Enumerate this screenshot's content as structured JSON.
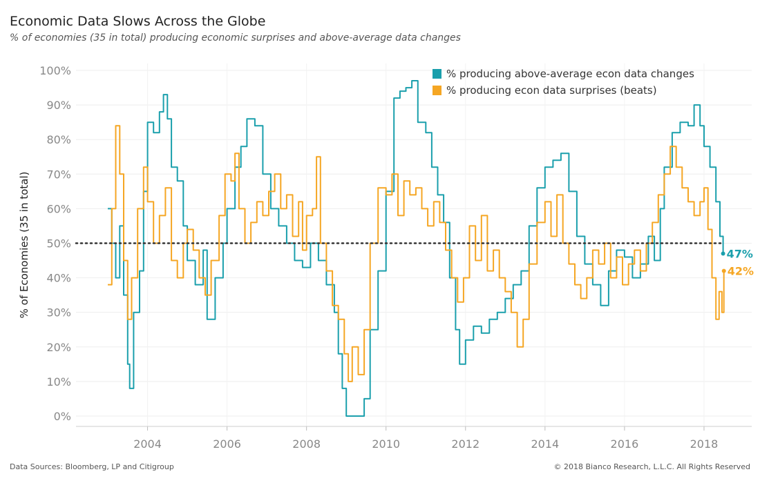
{
  "header": {
    "title": "Economic Data Slows Across the Globe",
    "subtitle": "% of economies (35 in total) producing economic surprises and above-average data changes"
  },
  "footer": {
    "source": "Data Sources: Bloomberg, LP and Citigroup",
    "copyright": "© 2018 Bianco Research, L.L.C. All Rights Reserved"
  },
  "chart_data": {
    "type": "line",
    "title": "Economic Data Slows Across the Globe",
    "subtitle": "% of economies (35 in total) producing economic surprises and above-average data changes",
    "xlabel": "",
    "ylabel": "% of Economies (35 in total)",
    "xlim": [
      2002.2,
      2019.2
    ],
    "ylim": [
      -3,
      102
    ],
    "x_ticks": [
      2004,
      2006,
      2008,
      2010,
      2012,
      2014,
      2016,
      2018
    ],
    "x_tick_labels": [
      "2004",
      "2006",
      "2008",
      "2010",
      "2012",
      "2014",
      "2016",
      "2018"
    ],
    "y_ticks": [
      0,
      10,
      20,
      30,
      40,
      50,
      60,
      70,
      80,
      90,
      100
    ],
    "y_tick_labels": [
      "0%",
      "10%",
      "20%",
      "30%",
      "40%",
      "50%",
      "60%",
      "70%",
      "80%",
      "90%",
      "100%"
    ],
    "grid": true,
    "legend_position": "top-right",
    "reference_line": {
      "y": 50,
      "style": "dotted",
      "color": "#333333"
    },
    "series": [
      {
        "name": "% producing above-average econ data changes",
        "color": "#1A9FAC",
        "end_label": "47%",
        "points": [
          [
            2003.0,
            60
          ],
          [
            2003.1,
            50
          ],
          [
            2003.2,
            40
          ],
          [
            2003.3,
            55
          ],
          [
            2003.4,
            35
          ],
          [
            2003.5,
            15
          ],
          [
            2003.55,
            8
          ],
          [
            2003.65,
            30
          ],
          [
            2003.8,
            42
          ],
          [
            2003.9,
            65
          ],
          [
            2004.0,
            85
          ],
          [
            2004.15,
            82
          ],
          [
            2004.3,
            88
          ],
          [
            2004.4,
            93
          ],
          [
            2004.5,
            86
          ],
          [
            2004.6,
            72
          ],
          [
            2004.75,
            68
          ],
          [
            2004.9,
            55
          ],
          [
            2005.0,
            45
          ],
          [
            2005.2,
            38
          ],
          [
            2005.4,
            48
          ],
          [
            2005.5,
            28
          ],
          [
            2005.7,
            40
          ],
          [
            2005.9,
            50
          ],
          [
            2006.0,
            60
          ],
          [
            2006.2,
            72
          ],
          [
            2006.35,
            78
          ],
          [
            2006.5,
            86
          ],
          [
            2006.7,
            84
          ],
          [
            2006.9,
            70
          ],
          [
            2007.1,
            60
          ],
          [
            2007.3,
            55
          ],
          [
            2007.5,
            50
          ],
          [
            2007.7,
            45
          ],
          [
            2007.9,
            43
          ],
          [
            2008.1,
            50
          ],
          [
            2008.3,
            45
          ],
          [
            2008.5,
            38
          ],
          [
            2008.7,
            30
          ],
          [
            2008.8,
            18
          ],
          [
            2008.9,
            8
          ],
          [
            2009.0,
            0
          ],
          [
            2009.3,
            0
          ],
          [
            2009.45,
            5
          ],
          [
            2009.6,
            25
          ],
          [
            2009.8,
            42
          ],
          [
            2010.0,
            65
          ],
          [
            2010.2,
            92
          ],
          [
            2010.35,
            94
          ],
          [
            2010.5,
            95
          ],
          [
            2010.65,
            97
          ],
          [
            2010.8,
            85
          ],
          [
            2011.0,
            82
          ],
          [
            2011.15,
            72
          ],
          [
            2011.3,
            64
          ],
          [
            2011.45,
            56
          ],
          [
            2011.6,
            40
          ],
          [
            2011.75,
            25
          ],
          [
            2011.85,
            15
          ],
          [
            2012.0,
            22
          ],
          [
            2012.2,
            26
          ],
          [
            2012.4,
            24
          ],
          [
            2012.6,
            28
          ],
          [
            2012.8,
            30
          ],
          [
            2013.0,
            34
          ],
          [
            2013.2,
            38
          ],
          [
            2013.4,
            42
          ],
          [
            2013.6,
            55
          ],
          [
            2013.8,
            66
          ],
          [
            2014.0,
            72
          ],
          [
            2014.2,
            74
          ],
          [
            2014.4,
            76
          ],
          [
            2014.6,
            65
          ],
          [
            2014.8,
            52
          ],
          [
            2015.0,
            44
          ],
          [
            2015.2,
            38
          ],
          [
            2015.4,
            32
          ],
          [
            2015.6,
            42
          ],
          [
            2015.8,
            48
          ],
          [
            2016.0,
            46
          ],
          [
            2016.2,
            40
          ],
          [
            2016.4,
            44
          ],
          [
            2016.6,
            52
          ],
          [
            2016.75,
            45
          ],
          [
            2016.9,
            60
          ],
          [
            2017.0,
            72
          ],
          [
            2017.2,
            82
          ],
          [
            2017.4,
            85
          ],
          [
            2017.6,
            84
          ],
          [
            2017.75,
            90
          ],
          [
            2017.9,
            84
          ],
          [
            2018.0,
            78
          ],
          [
            2018.15,
            72
          ],
          [
            2018.3,
            62
          ],
          [
            2018.4,
            52
          ],
          [
            2018.48,
            47
          ]
        ]
      },
      {
        "name": "% producing econ data surprises (beats)",
        "color": "#F5A623",
        "end_label": "42%",
        "points": [
          [
            2003.0,
            38
          ],
          [
            2003.1,
            60
          ],
          [
            2003.2,
            84
          ],
          [
            2003.3,
            70
          ],
          [
            2003.4,
            45
          ],
          [
            2003.5,
            28
          ],
          [
            2003.6,
            40
          ],
          [
            2003.75,
            60
          ],
          [
            2003.9,
            72
          ],
          [
            2004.0,
            62
          ],
          [
            2004.15,
            50
          ],
          [
            2004.3,
            58
          ],
          [
            2004.45,
            66
          ],
          [
            2004.6,
            45
          ],
          [
            2004.75,
            40
          ],
          [
            2004.9,
            50
          ],
          [
            2005.0,
            54
          ],
          [
            2005.15,
            48
          ],
          [
            2005.3,
            40
          ],
          [
            2005.45,
            35
          ],
          [
            2005.6,
            45
          ],
          [
            2005.8,
            58
          ],
          [
            2005.95,
            70
          ],
          [
            2006.1,
            68
          ],
          [
            2006.2,
            76
          ],
          [
            2006.3,
            60
          ],
          [
            2006.45,
            50
          ],
          [
            2006.6,
            56
          ],
          [
            2006.75,
            62
          ],
          [
            2006.9,
            58
          ],
          [
            2007.05,
            65
          ],
          [
            2007.2,
            70
          ],
          [
            2007.35,
            60
          ],
          [
            2007.5,
            64
          ],
          [
            2007.65,
            52
          ],
          [
            2007.8,
            62
          ],
          [
            2007.9,
            48
          ],
          [
            2008.0,
            58
          ],
          [
            2008.15,
            60
          ],
          [
            2008.25,
            75
          ],
          [
            2008.35,
            50
          ],
          [
            2008.5,
            42
          ],
          [
            2008.65,
            32
          ],
          [
            2008.8,
            28
          ],
          [
            2008.95,
            18
          ],
          [
            2009.05,
            10
          ],
          [
            2009.15,
            20
          ],
          [
            2009.3,
            12
          ],
          [
            2009.45,
            25
          ],
          [
            2009.6,
            50
          ],
          [
            2009.8,
            66
          ],
          [
            2010.0,
            64
          ],
          [
            2010.15,
            70
          ],
          [
            2010.3,
            58
          ],
          [
            2010.45,
            68
          ],
          [
            2010.6,
            64
          ],
          [
            2010.75,
            66
          ],
          [
            2010.9,
            60
          ],
          [
            2011.05,
            55
          ],
          [
            2011.2,
            62
          ],
          [
            2011.35,
            56
          ],
          [
            2011.5,
            48
          ],
          [
            2011.65,
            40
          ],
          [
            2011.8,
            33
          ],
          [
            2011.95,
            40
          ],
          [
            2012.1,
            55
          ],
          [
            2012.25,
            45
          ],
          [
            2012.4,
            58
          ],
          [
            2012.55,
            42
          ],
          [
            2012.7,
            48
          ],
          [
            2012.85,
            40
          ],
          [
            2013.0,
            36
          ],
          [
            2013.15,
            30
          ],
          [
            2013.3,
            20
          ],
          [
            2013.45,
            28
          ],
          [
            2013.6,
            44
          ],
          [
            2013.8,
            56
          ],
          [
            2014.0,
            62
          ],
          [
            2014.15,
            52
          ],
          [
            2014.3,
            64
          ],
          [
            2014.45,
            50
          ],
          [
            2014.6,
            44
          ],
          [
            2014.75,
            38
          ],
          [
            2014.9,
            34
          ],
          [
            2015.05,
            40
          ],
          [
            2015.2,
            48
          ],
          [
            2015.35,
            44
          ],
          [
            2015.5,
            50
          ],
          [
            2015.65,
            40
          ],
          [
            2015.8,
            46
          ],
          [
            2015.95,
            38
          ],
          [
            2016.1,
            44
          ],
          [
            2016.25,
            48
          ],
          [
            2016.4,
            42
          ],
          [
            2016.55,
            50
          ],
          [
            2016.7,
            56
          ],
          [
            2016.85,
            64
          ],
          [
            2017.0,
            70
          ],
          [
            2017.15,
            78
          ],
          [
            2017.3,
            72
          ],
          [
            2017.45,
            66
          ],
          [
            2017.6,
            62
          ],
          [
            2017.75,
            58
          ],
          [
            2017.9,
            62
          ],
          [
            2018.0,
            66
          ],
          [
            2018.1,
            54
          ],
          [
            2018.2,
            40
          ],
          [
            2018.3,
            28
          ],
          [
            2018.38,
            36
          ],
          [
            2018.45,
            30
          ],
          [
            2018.5,
            42
          ]
        ]
      }
    ]
  }
}
